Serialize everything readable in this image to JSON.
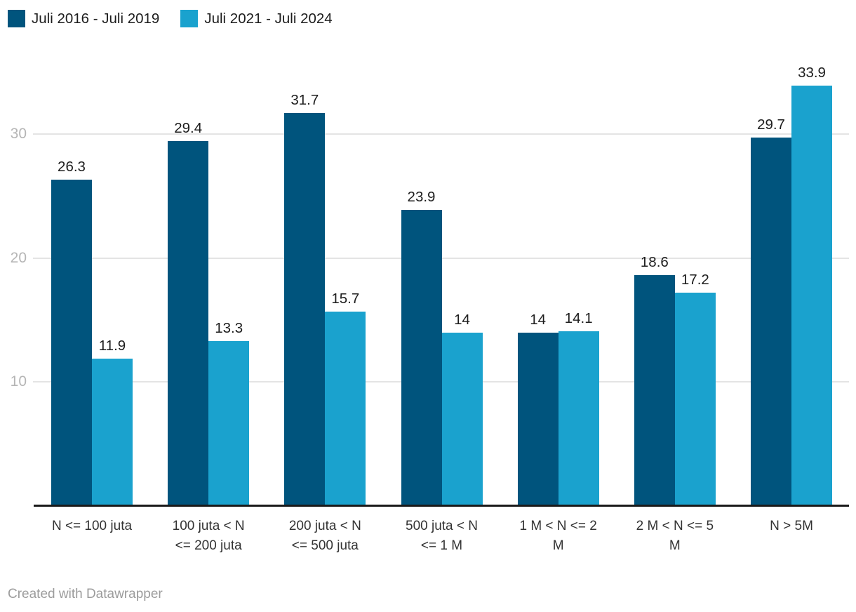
{
  "legend": {
    "items": [
      {
        "label": "Juli 2016 - Juli 2019",
        "color": "#00547d"
      },
      {
        "label": "Juli 2021 - Juli 2024",
        "color": "#1aa2ce"
      }
    ]
  },
  "footer": {
    "attribution": "Created with Datawrapper"
  },
  "chart_data": {
    "type": "bar",
    "title": "",
    "xlabel": "",
    "ylabel": "",
    "categories": [
      "N <= 100 juta",
      "100 juta < N\n<= 200 juta",
      "200 juta < N\n<= 500 juta",
      "500 juta < N\n<= 1 M",
      "1 M < N <= 2\nM",
      "2 M < N <= 5\nM",
      "N > 5M"
    ],
    "series": [
      {
        "name": "Juli 2016 - Juli 2019",
        "color": "#00547d",
        "values": [
          26.3,
          29.4,
          31.7,
          23.9,
          14,
          18.6,
          29.7
        ]
      },
      {
        "name": "Juli 2021 - Juli 2024",
        "color": "#1aa2ce",
        "values": [
          11.9,
          13.3,
          15.7,
          14,
          14.1,
          17.2,
          33.9
        ]
      }
    ],
    "value_labels": true,
    "yticks": [
      10,
      20,
      30
    ],
    "ylim": [
      0,
      36.5
    ],
    "grid": true,
    "legend_position": "top-left",
    "colors": {
      "gridline": "#e4e4e4",
      "axis_line": "#1a1a1a",
      "tick_label": "#b5b5b5",
      "value_label": "#1d1d1d",
      "category_label": "#333333"
    }
  }
}
